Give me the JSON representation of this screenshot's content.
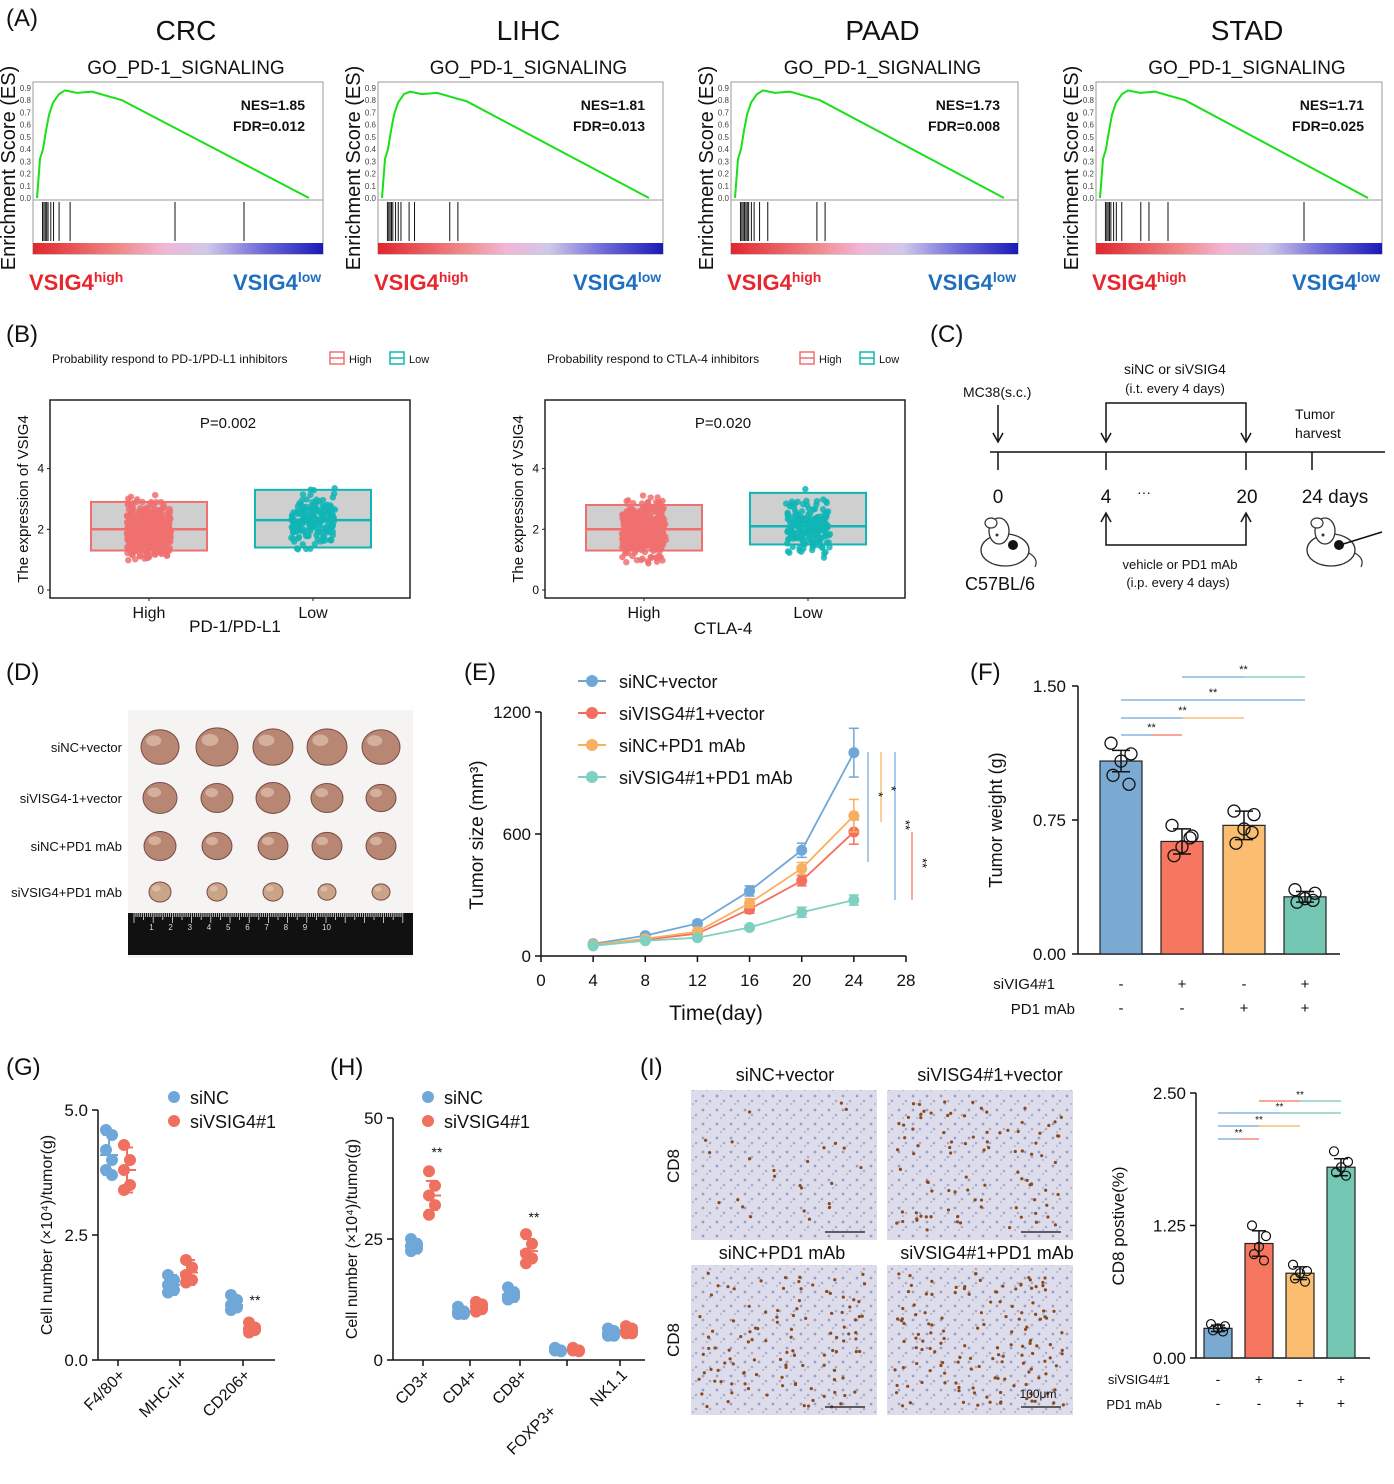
{
  "panel_labels": [
    "(A)",
    "(B)",
    "(C)",
    "(D)",
    "(E)",
    "(F)",
    "(G)",
    "(H)",
    "(I)"
  ],
  "gsea": {
    "ylabel": "Enrichment Score (ES)",
    "pathway": "GO_PD-1_SIGNALING",
    "high_label": "VSIG4",
    "high_sup": "high",
    "low_label": "VSIG4",
    "low_sup": "low",
    "yticks": [
      "0.0",
      "0.1",
      "0.2",
      "0.3",
      "0.4",
      "0.5",
      "0.6",
      "0.7",
      "0.8",
      "0.9"
    ],
    "colors": {
      "curve": "#19e019",
      "high": "#e8262d",
      "low": "#1f6fc0"
    },
    "panels": [
      {
        "title": "CRC",
        "nes": "NES=1.85",
        "fdr": "FDR=0.012",
        "peak": 0.88,
        "hits": [
          0.02,
          0.025,
          0.03,
          0.035,
          0.04,
          0.05,
          0.06,
          0.08,
          0.12,
          0.5,
          0.75
        ]
      },
      {
        "title": "LIHC",
        "nes": "NES=1.81",
        "fdr": "FDR=0.013",
        "peak": 0.87,
        "hits": [
          0.02,
          0.025,
          0.03,
          0.035,
          0.04,
          0.05,
          0.06,
          0.07,
          0.1,
          0.12,
          0.25,
          0.28
        ]
      },
      {
        "title": "PAAD",
        "nes": "NES=1.73",
        "fdr": "FDR=0.008",
        "peak": 0.88,
        "hits": [
          0.02,
          0.025,
          0.03,
          0.035,
          0.04,
          0.045,
          0.05,
          0.06,
          0.07,
          0.09,
          0.12,
          0.3,
          0.33
        ]
      },
      {
        "title": "STAD",
        "nes": "NES=1.71",
        "fdr": "FDR=0.025",
        "peak": 0.88,
        "hits": [
          0.02,
          0.025,
          0.03,
          0.035,
          0.04,
          0.05,
          0.06,
          0.08,
          0.15,
          0.18,
          0.25,
          0.75
        ]
      }
    ]
  },
  "panel_b": {
    "ylabel": "The expression of VSIG4",
    "legend_high": "High",
    "legend_low": "Low",
    "yticks": [
      "0",
      "2",
      "4"
    ],
    "colors": {
      "high": "#f07070",
      "low": "#10b5b5"
    },
    "plots": [
      {
        "legend_title": "Probability respond to PD-1/PD-L1 inhibitors",
        "p": "P=0.002",
        "xcats": [
          "High",
          "Low"
        ],
        "xlabel": "PD-1/PD-L1",
        "high": {
          "q1": 1.3,
          "med": 2.0,
          "q3": 2.9
        },
        "low": {
          "q1": 1.4,
          "med": 2.3,
          "q3": 3.3
        }
      },
      {
        "legend_title": "Probability respond to CTLA-4 inhibitors",
        "p": "P=0.020",
        "xcats": [
          "High",
          "Low"
        ],
        "xlabel": "CTLA-4",
        "high": {
          "q1": 1.3,
          "med": 2.0,
          "q3": 2.8
        },
        "low": {
          "q1": 1.5,
          "med": 2.1,
          "q3": 3.2
        }
      }
    ]
  },
  "panel_c": {
    "mc38": "MC38(s.c.)",
    "sinc_line1": "siNC or siVSIG4",
    "sinc_line2": "(i.t. every 4 days)",
    "tumor1": "Tumor",
    "tumor2": "harvest",
    "ticks": [
      "0",
      "4",
      "···",
      "20",
      "24 days"
    ],
    "strain": "C57BL/6",
    "vehicle1": "vehicle or PD1 mAb",
    "vehicle2": "(i.p. every 4 days)"
  },
  "panel_d": {
    "rows": [
      "siNC+vector",
      "siVISG4-1+vector",
      "siNC+PD1 mAb",
      "siVSIG4+PD1 mAb"
    ],
    "ruler_numbers": [
      "1",
      "2",
      "3",
      "4",
      "5",
      "6",
      "7",
      "8",
      "9",
      "10"
    ],
    "tumor_sizes": [
      [
        38,
        42,
        40,
        40,
        38
      ],
      [
        34,
        32,
        34,
        32,
        30
      ],
      [
        32,
        30,
        30,
        30,
        30
      ],
      [
        22,
        20,
        20,
        18,
        18
      ]
    ]
  },
  "panel_e": {
    "ylabel": "Tumor size (mm³)",
    "xlabel": "Time(day)",
    "yticks": [
      "0",
      "600",
      "1200"
    ],
    "xticks": [
      "0",
      "4",
      "8",
      "12",
      "16",
      "20",
      "24",
      "28"
    ],
    "sig": [
      "*",
      "*",
      "**",
      "**"
    ],
    "chart_data": {
      "type": "line",
      "x": [
        4,
        8,
        12,
        16,
        20,
        24
      ],
      "xlim": [
        0,
        28
      ],
      "ylim": [
        0,
        1200
      ],
      "series": [
        {
          "name": "siNC+vector",
          "color": "#6fa8d8",
          "values": [
            60,
            100,
            160,
            320,
            520,
            1000
          ],
          "err": [
            8,
            12,
            15,
            25,
            35,
            120
          ]
        },
        {
          "name": "siVISG4#1+vector",
          "color": "#f4705e",
          "values": [
            55,
            80,
            110,
            230,
            370,
            610
          ],
          "err": [
            6,
            8,
            10,
            20,
            25,
            60
          ]
        },
        {
          "name": "siNC+PD1 mAb",
          "color": "#f8b060",
          "values": [
            55,
            85,
            120,
            260,
            430,
            690
          ],
          "err": [
            6,
            8,
            10,
            22,
            30,
            80
          ]
        },
        {
          "name": "siVSIG4#1+PD1 mAb",
          "color": "#7fd0c0",
          "values": [
            50,
            75,
            90,
            140,
            215,
            275
          ],
          "err": [
            5,
            6,
            8,
            12,
            25,
            25
          ]
        }
      ]
    }
  },
  "panel_f": {
    "ylabel": "Tumor weight (g)",
    "yticks": [
      "0.00",
      "0.75",
      "1.50"
    ],
    "row1_label": "siVIG4#1",
    "row2_label": "PD1 mAb",
    "row1": [
      "-",
      "+",
      "-",
      "+"
    ],
    "row2": [
      "-",
      "-",
      "+",
      "+"
    ],
    "sig": [
      "**",
      "**",
      "**",
      "**"
    ],
    "chart_data": {
      "type": "bar",
      "categories": [
        "siNC+vector",
        "siVISG4#1+vector",
        "siNC+PD1 mAb",
        "siVSIG4#1+PD1 mAb"
      ],
      "values": [
        1.08,
        0.63,
        0.72,
        0.32
      ],
      "err": [
        0.06,
        0.07,
        0.08,
        0.03
      ],
      "ylim": [
        0,
        1.5
      ],
      "colors": [
        "#7aa9d2",
        "#f6765f",
        "#fbbe70",
        "#74c7b3"
      ],
      "points": [
        [
          1.18,
          1.12,
          1.08,
          1.0,
          0.95
        ],
        [
          0.72,
          0.66,
          0.6,
          0.55,
          0.65
        ],
        [
          0.8,
          0.78,
          0.7,
          0.62,
          0.68
        ],
        [
          0.36,
          0.34,
          0.31,
          0.29,
          0.3
        ]
      ]
    }
  },
  "panel_g": {
    "ylabel": "Cell number (×10⁴)/tumor(g)",
    "yticks": [
      "0.0",
      "2.5",
      "5.0"
    ],
    "legend": [
      "siNC",
      "siVSIG4#1"
    ],
    "sig": "**",
    "chart_data": {
      "type": "scatter",
      "categories": [
        "F4/80+",
        "MHC-II+",
        "CD206+"
      ],
      "ylim": [
        0,
        5
      ],
      "series": [
        {
          "name": "siNC",
          "color": "#6fa8d8",
          "mean": [
            4.1,
            1.5,
            1.1
          ],
          "err": [
            0.4,
            0.2,
            0.12
          ],
          "points": [
            [
              4.6,
              4.5,
              4.2,
              4.0,
              3.8,
              3.7
            ],
            [
              1.7,
              1.6,
              1.5,
              1.4,
              1.35
            ],
            [
              1.3,
              1.2,
              1.1,
              1.05,
              1.0
            ]
          ]
        },
        {
          "name": "siVSIG4#1",
          "color": "#f07060",
          "mean": [
            3.8,
            1.75,
            0.62
          ],
          "err": [
            0.45,
            0.25,
            0.08
          ],
          "points": [
            [
              4.3,
              4.0,
              3.8,
              3.5,
              3.4
            ],
            [
              2.0,
              1.85,
              1.7,
              1.6,
              1.55
            ],
            [
              0.75,
              0.65,
              0.62,
              0.6,
              0.55
            ]
          ]
        }
      ]
    }
  },
  "panel_h": {
    "ylabel": "Cell number (×10⁴)/tumor(g)",
    "yticks": [
      "0",
      "25",
      "50"
    ],
    "legend": [
      "siNC",
      "siVSIG4#1"
    ],
    "sig": [
      "**",
      "**"
    ],
    "chart_data": {
      "type": "scatter",
      "categories": [
        "CD3+",
        "CD4+",
        "CD8+",
        "FOXP3+",
        "NK1.1"
      ],
      "ylim": [
        0,
        50
      ],
      "series": [
        {
          "name": "siNC",
          "color": "#6fa8d8",
          "mean": [
            23.5,
            10,
            13.5,
            2,
            5.5
          ],
          "err": [
            1.5,
            1,
            1.5,
            0.5,
            1
          ],
          "points": [
            [
              25,
              24,
              23.5,
              23,
              22.5
            ],
            [
              11,
              10,
              9.5,
              9.5,
              10
            ],
            [
              15,
              14,
              13,
              13,
              12.5
            ],
            [
              2.5,
              2,
              2,
              1.8,
              2
            ],
            [
              6.5,
              6,
              5.5,
              5,
              5
            ]
          ]
        },
        {
          "name": "siVSIG4#1",
          "color": "#f07060",
          "mean": [
            34,
            11,
            22.5,
            2,
            6
          ],
          "err": [
            3,
            1.2,
            2.5,
            0.5,
            1
          ],
          "points": [
            [
              39,
              36,
              34,
              32,
              30
            ],
            [
              12,
              11.5,
              11,
              10.5,
              10
            ],
            [
              26,
              24,
              22,
              21,
              20
            ],
            [
              2.5,
              2,
              2,
              1.8,
              2
            ],
            [
              7,
              6.5,
              6,
              5.5,
              5.5
            ]
          ]
        }
      ]
    }
  },
  "panel_i": {
    "image_titles": [
      "siNC+vector",
      "siVISG4#1+vector",
      "siNC+PD1 mAb",
      "siVSIG4#1+PD1 mAb"
    ],
    "row_label": "CD8",
    "scale": "100μm",
    "ylabel": "CD8 postive(%)",
    "yticks": [
      "0.00",
      "1.25",
      "2.50"
    ],
    "row1_label": "siVSIG4#1",
    "row2_label": "PD1 mAb",
    "row1": [
      "-",
      "+",
      "-",
      "+"
    ],
    "row2": [
      "-",
      "-",
      "+",
      "+"
    ],
    "sig": [
      "**",
      "**",
      "**",
      "**"
    ],
    "chart_data": {
      "type": "bar",
      "categories": [
        "siNC+vector",
        "siVISG4#1+vector",
        "siNC+PD1 mAb",
        "siVSIG4#1+PD1 mAb"
      ],
      "values": [
        0.28,
        1.08,
        0.8,
        1.8
      ],
      "err": [
        0.03,
        0.12,
        0.06,
        0.08
      ],
      "ylim": [
        0,
        2.5
      ],
      "colors": [
        "#7aa9d2",
        "#f6765f",
        "#fbbe70",
        "#74c7b3"
      ],
      "points": [
        [
          0.32,
          0.3,
          0.28,
          0.26,
          0.25
        ],
        [
          1.25,
          1.15,
          1.05,
          0.98,
          0.92
        ],
        [
          0.88,
          0.82,
          0.8,
          0.75,
          0.72
        ],
        [
          1.95,
          1.85,
          1.8,
          1.75,
          1.72
        ]
      ]
    }
  }
}
